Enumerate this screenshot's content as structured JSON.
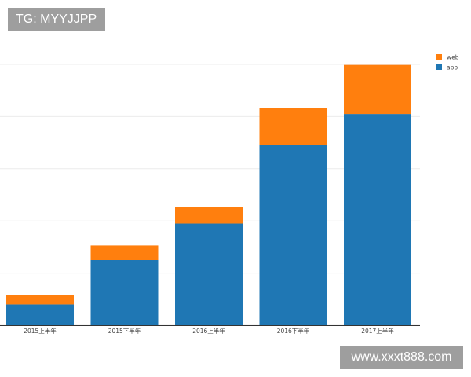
{
  "watermarks": {
    "tg_label": "TG: MYYJJPP",
    "site_label": "www.xxxt888.com"
  },
  "colors": {
    "web": "#ff7f0e",
    "app": "#1f77b4",
    "grid": "#ececec",
    "axis": "#333333",
    "badge_bg": "#9e9e9e"
  },
  "chart_data": {
    "type": "bar",
    "stacked": true,
    "title": "",
    "xlabel": "",
    "ylabel": "",
    "categories": [
      "2015上半年",
      "2015下半年",
      "2016上半年",
      "2016下半年",
      "2017上半年"
    ],
    "series": [
      {
        "name": "app",
        "values": [
          0.4,
          1.25,
          1.95,
          3.45,
          4.05
        ]
      },
      {
        "name": "web",
        "values": [
          0.18,
          0.28,
          0.32,
          0.72,
          0.94
        ]
      }
    ],
    "ylim": [
      0,
      5
    ],
    "y_tick_labels_shown": false,
    "grid": true,
    "legend_position": "top-right"
  }
}
